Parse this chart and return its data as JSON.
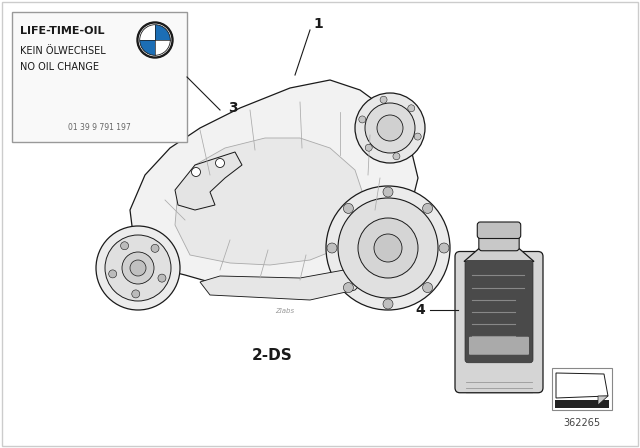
{
  "background_color": "#ffffff",
  "diagram_number": "362265",
  "sticker_text_line1": "LIFE-TIME-OIL",
  "sticker_text_line2": "KEIN ÖLWECHSEL",
  "sticker_text_line3": "NO OIL CHANGE",
  "sticker_part_number": "01 39 9 791 197",
  "label_1_text": "1",
  "label_3_text": "3",
  "label_4_text": "4",
  "label_2ds_text": "2-DS",
  "black": "#1a1a1a",
  "mid_gray": "#aaaaaa",
  "light_gray": "#e8e8e8",
  "dark_gray": "#666666",
  "border_gray": "#999999"
}
